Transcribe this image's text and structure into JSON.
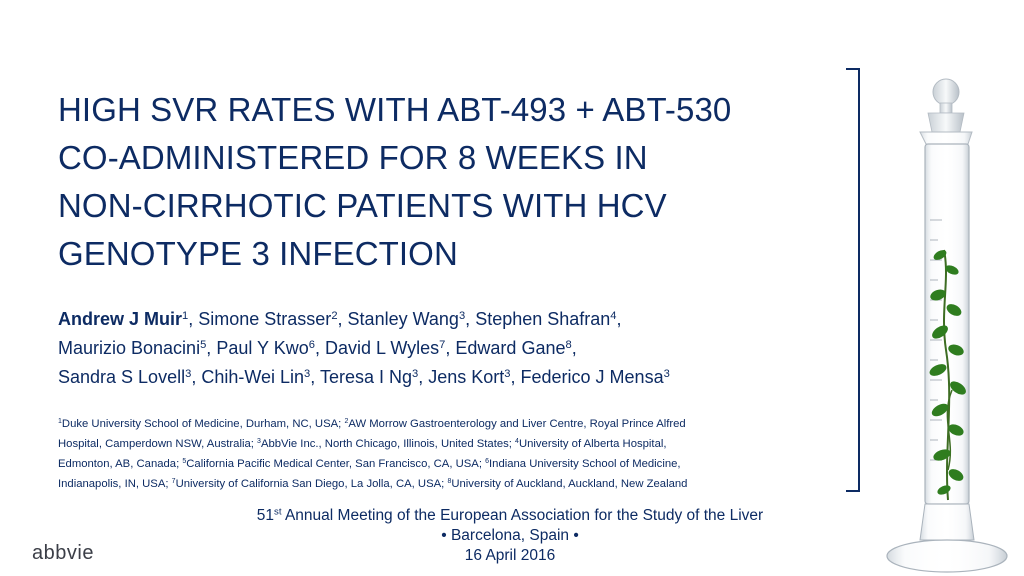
{
  "title": {
    "lines": [
      "HIGH SVR RATES WITH ABT-493 + ABT-530",
      "CO-ADMINISTERED FOR 8 WEEKS IN",
      "NON-CIRRHOTIC PATIENTS WITH HCV",
      "GENOTYPE 3 INFECTION"
    ]
  },
  "authors": {
    "lines": [
      [
        {
          "name": "Andrew J Muir",
          "sup": "1",
          "sep": ", "
        },
        {
          "name": "Simone Strasser",
          "sup": "2",
          "sep": ", "
        },
        {
          "name": "Stanley Wang",
          "sup": "3",
          "sep": ", "
        },
        {
          "name": "Stephen Shafran",
          "sup": "4",
          "sep": ","
        }
      ],
      [
        {
          "name": "Maurizio Bonacini",
          "sup": "5",
          "sep": ", "
        },
        {
          "name": "Paul Y Kwo",
          "sup": "6",
          "sep": ", "
        },
        {
          "name": "David L Wyles",
          "sup": "7",
          "sep": ", "
        },
        {
          "name": "Edward Gane",
          "sup": "8",
          "sep": ","
        }
      ],
      [
        {
          "name": "Sandra S Lovell",
          "sup": "3",
          "sep": ", "
        },
        {
          "name": "Chih-Wei Lin",
          "sup": "3",
          "sep": ", "
        },
        {
          "name": "Teresa I Ng",
          "sup": "3",
          "sep": ", "
        },
        {
          "name": "Jens Kort",
          "sup": "3",
          "sep": ", "
        },
        {
          "name": "Federico J Mensa",
          "sup": "3",
          "sep": ""
        }
      ]
    ]
  },
  "affiliations": {
    "lines": [
      [
        {
          "sup": "1",
          "text": "Duke University School of Medicine, Durham, NC, USA; "
        },
        {
          "sup": "2",
          "text": "AW Morrow Gastroenterology and Liver Centre, Royal Prince Alfred"
        }
      ],
      [
        {
          "sup": "",
          "text": "Hospital, Camperdown NSW, Australia; "
        },
        {
          "sup": "3",
          "text": "AbbVie Inc., North Chicago, Illinois, United States; "
        },
        {
          "sup": "4",
          "text": "University of Alberta Hospital,"
        }
      ],
      [
        {
          "sup": "",
          "text": "Edmonton, AB, Canada; "
        },
        {
          "sup": "5",
          "text": "California Pacific Medical Center, San Francisco, CA, USA; "
        },
        {
          "sup": "6",
          "text": "Indiana University School of Medicine,"
        }
      ],
      [
        {
          "sup": "",
          "text": "Indianapolis, IN, USA; "
        },
        {
          "sup": "7",
          "text": "University of California San Diego, La Jolla, CA, USA; "
        },
        {
          "sup": "8",
          "text": "University of Auckland, Auckland, New Zealand"
        }
      ]
    ]
  },
  "meeting": {
    "number": "51",
    "ordinal": "st",
    "name": " Annual Meeting of the European Association for the Study of the Liver",
    "location": "• Barcelona, Spain •",
    "date": "16 April 2016"
  },
  "logo": {
    "text": "abbvie"
  },
  "image": {
    "icon": "graduated-cylinder-with-plant-icon"
  },
  "colors": {
    "text": "#0d2b63",
    "leaf": "#2f7d1f",
    "logo": "#3b3e47"
  }
}
